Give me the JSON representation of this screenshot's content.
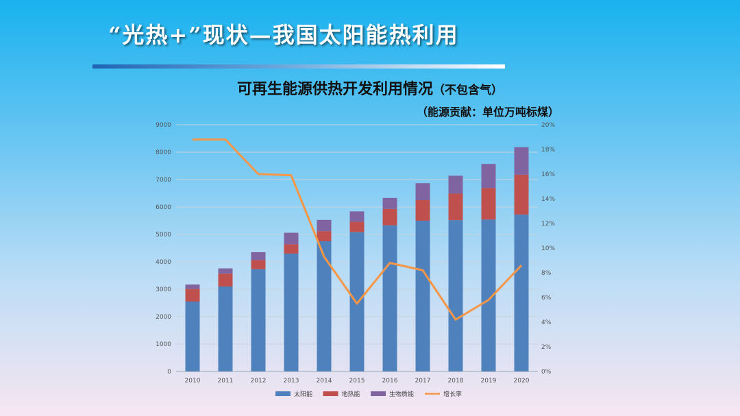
{
  "slide": {
    "title": "“光热+”现状—我国太阳能热利用"
  },
  "chart_data": {
    "type": "bar",
    "stacked": true,
    "title": "可再生能源供热开发利用情况",
    "title_suffix": "（不包含气）",
    "subtitle": "（能源贡献：单位万吨标煤）",
    "categories": [
      "2010",
      "2011",
      "2012",
      "2013",
      "2014",
      "2015",
      "2016",
      "2017",
      "2018",
      "2019",
      "2020"
    ],
    "series": [
      {
        "name": "太阳能",
        "kind": "bar",
        "axis": "left",
        "color": "#4f81bd",
        "values": [
          2550,
          3100,
          3730,
          4300,
          4750,
          5080,
          5330,
          5500,
          5520,
          5540,
          5720
        ]
      },
      {
        "name": "地热能",
        "kind": "bar",
        "axis": "left",
        "color": "#c0504d",
        "values": [
          460,
          470,
          330,
          340,
          370,
          380,
          600,
          750,
          970,
          1150,
          1460
        ]
      },
      {
        "name": "生物质能",
        "kind": "bar",
        "axis": "left",
        "color": "#8064a2",
        "values": [
          160,
          190,
          290,
          420,
          410,
          380,
          400,
          620,
          650,
          880,
          1000
        ]
      },
      {
        "name": "增长率",
        "kind": "line",
        "axis": "right",
        "color": "#f79646",
        "values": [
          0.188,
          0.188,
          0.16,
          0.159,
          0.093,
          0.055,
          0.088,
          0.082,
          0.042,
          0.058,
          0.086
        ]
      }
    ],
    "y_left": {
      "min": 0,
      "max": 9000,
      "ticks": [
        0,
        1000,
        2000,
        3000,
        4000,
        5000,
        6000,
        7000,
        8000,
        9000
      ]
    },
    "y_right": {
      "min": 0,
      "max": 0.2,
      "ticks": [
        "0%",
        "2%",
        "4%",
        "6%",
        "8%",
        "10%",
        "12%",
        "14%",
        "16%",
        "18%",
        "20%"
      ]
    },
    "grid": true,
    "legend_position": "bottom"
  }
}
